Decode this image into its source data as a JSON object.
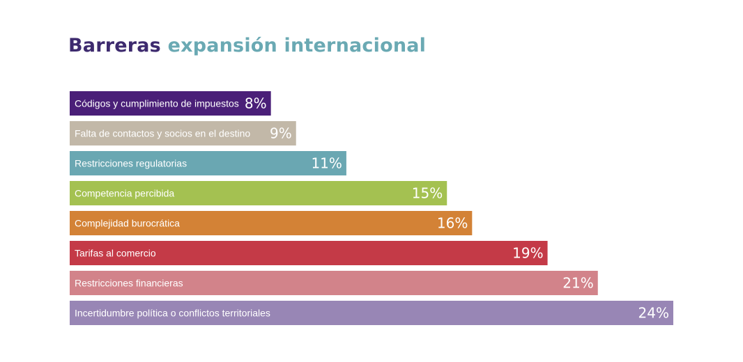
{
  "title": {
    "part1": "Barreras",
    "part2": "expansión internacional",
    "color_part1": "#3d2a6e",
    "color_part2": "#6aa9b3"
  },
  "chart_data": {
    "type": "bar",
    "orientation": "horizontal",
    "title": "Barreras expansión internacional",
    "categories": [
      "Códigos y cumplimiento de impuestos",
      "Falta de contactos y socios en el destino",
      "Restricciones regulatorias",
      "Competencia percibida",
      "Complejidad burocrática",
      "Tarifas al comercio",
      "Restricciones financieras",
      "Incertidumbre política o conflictos territoriales"
    ],
    "values": [
      8,
      9,
      11,
      15,
      16,
      19,
      21,
      24
    ],
    "value_labels": [
      "8%",
      "9%",
      "11%",
      "15%",
      "16%",
      "19%",
      "21%",
      "24%"
    ],
    "colors": [
      "#4a1f78",
      "#c2b8a8",
      "#6aa7b2",
      "#a4c151",
      "#d38236",
      "#c43a47",
      "#d2838a",
      "#9886b5"
    ],
    "unit": "%",
    "xlim": [
      0,
      24
    ],
    "grid": false,
    "legend": "none"
  }
}
